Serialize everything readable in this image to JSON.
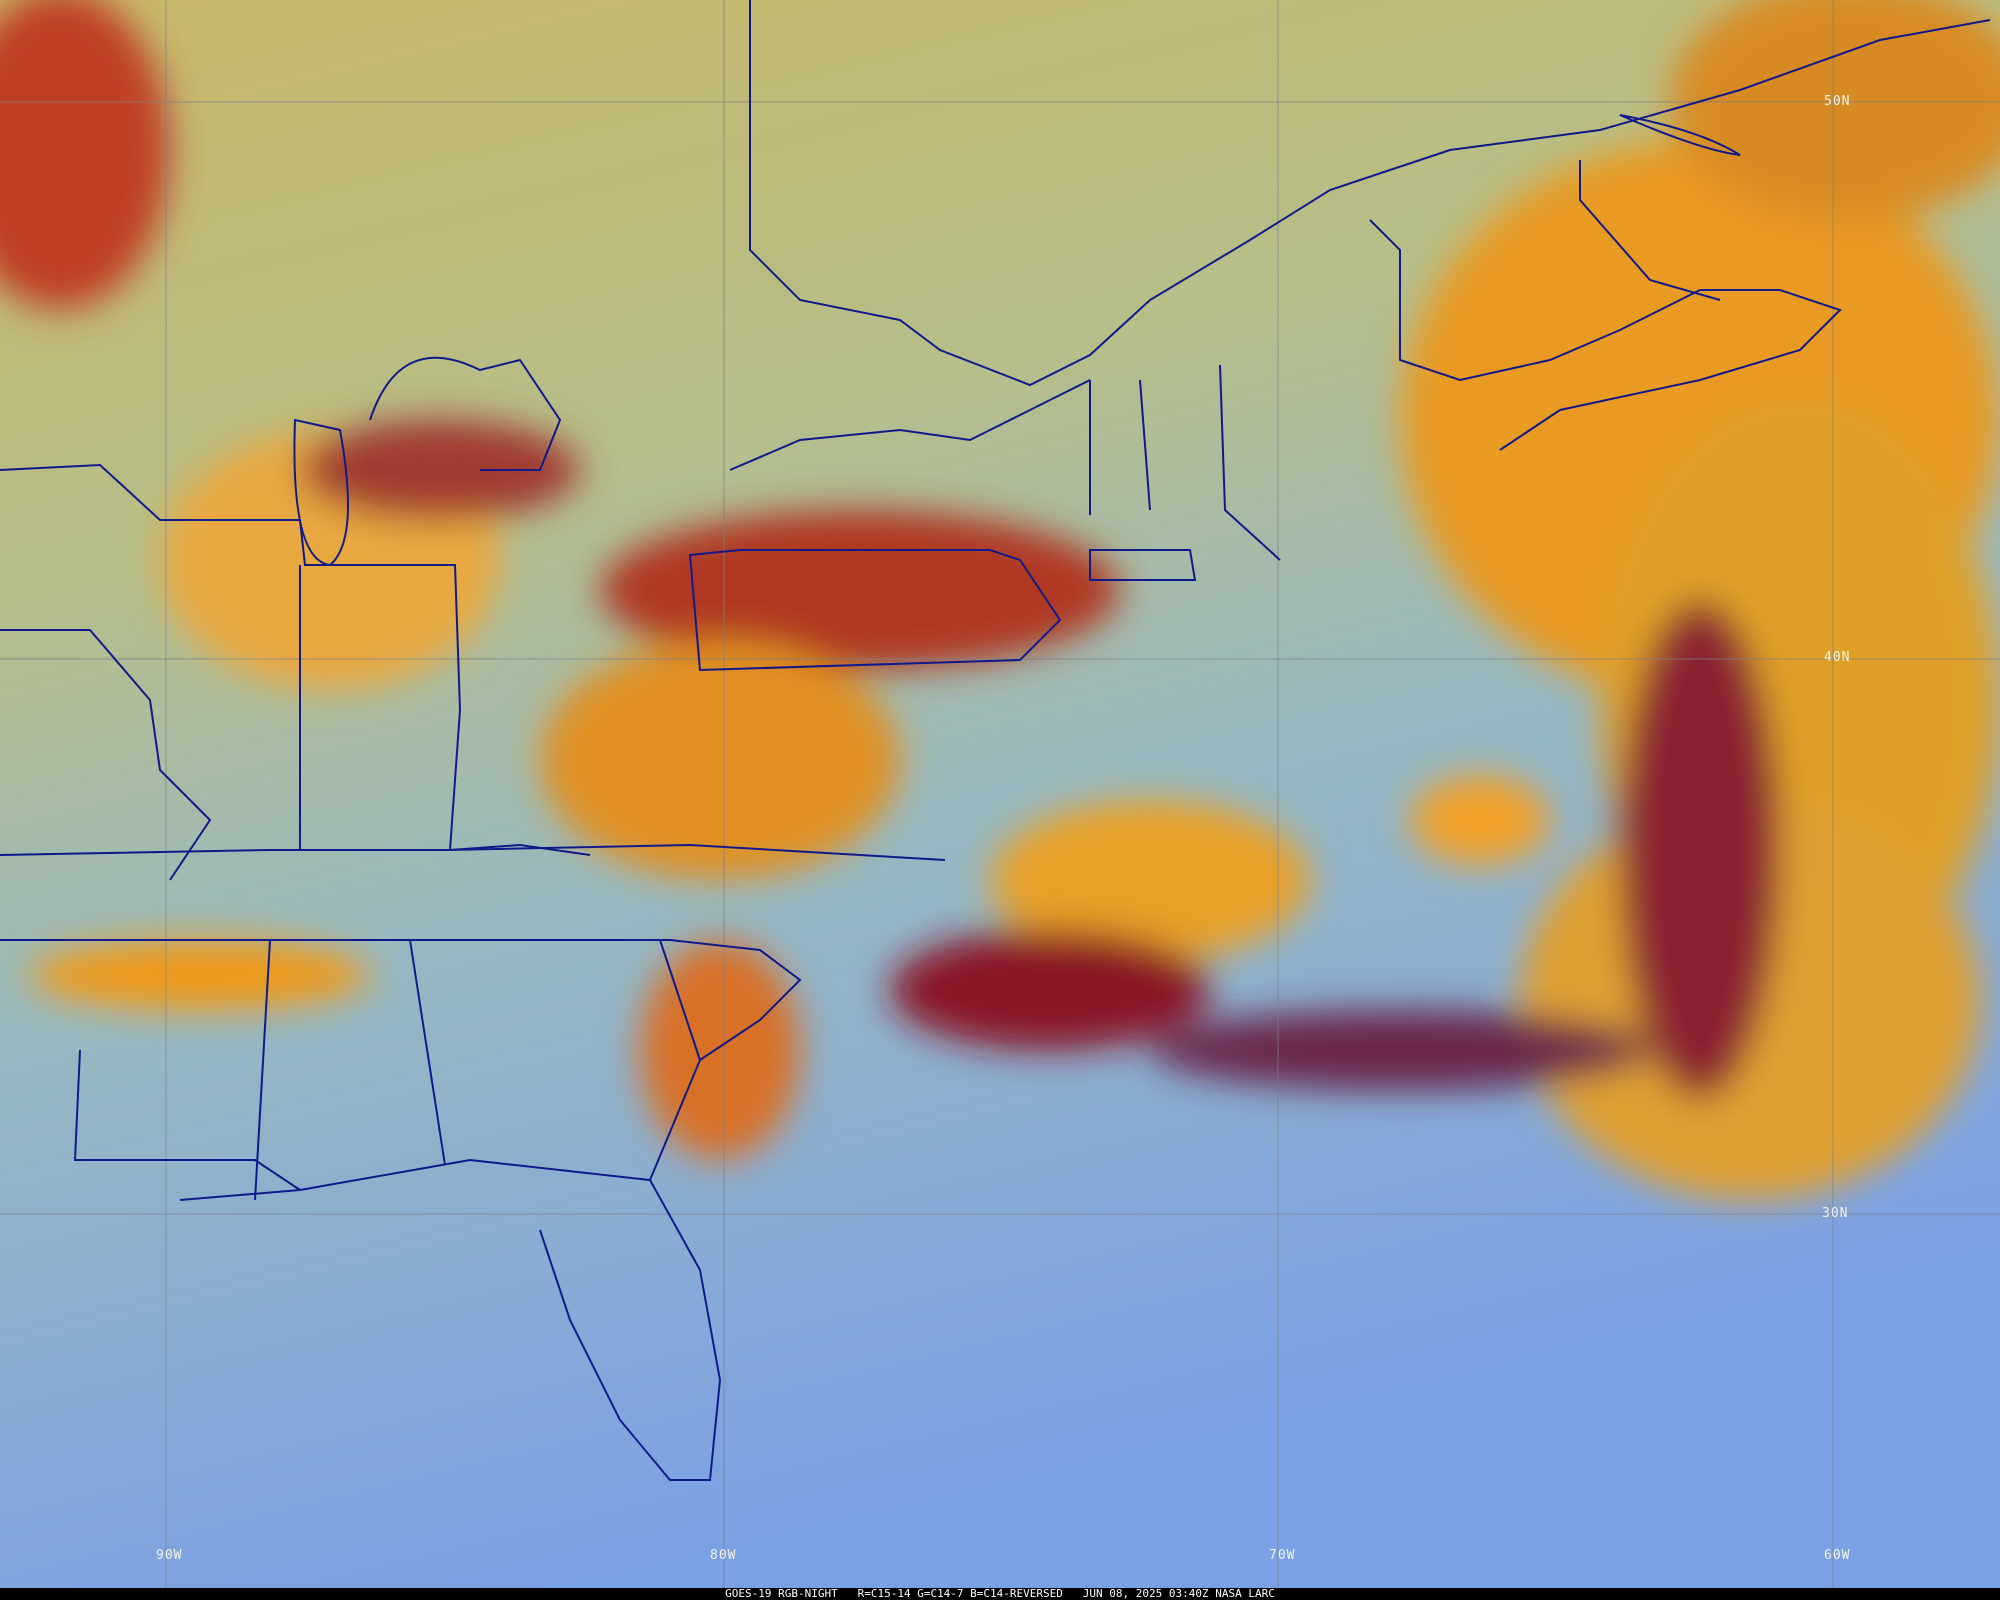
{
  "caption": {
    "satellite": "GOES-19 RGB-NIGHT",
    "channels": "R=C15-14 G=C14-7 B=C14-REVERSED",
    "datetime": "JUN 08, 2025 03:40Z",
    "source": "NASA LARC"
  },
  "grid_labels": {
    "lat": [
      "50N",
      "40N",
      "30N"
    ],
    "lon": [
      "90W",
      "80W",
      "70W",
      "60W"
    ]
  },
  "colors": {
    "boundaries": "#101a8a",
    "grid": "#7a7f8a",
    "ocean_clear": "#7aa6e8",
    "high_cloud": "#f0a020",
    "cold_cloud": "#9a1a20",
    "low_cloud": "#b0c890"
  }
}
